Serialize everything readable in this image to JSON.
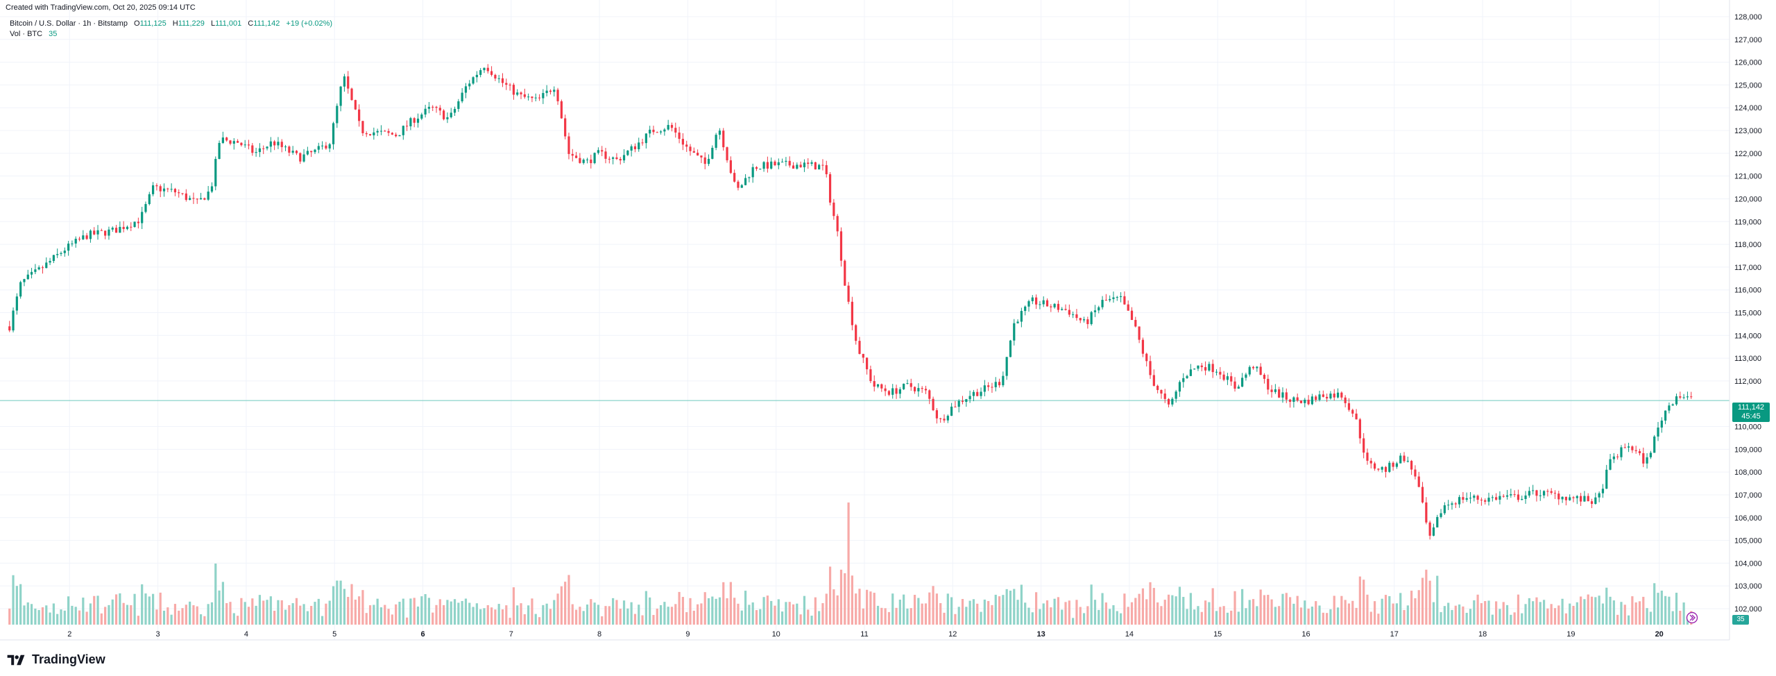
{
  "header": {
    "created": "Created with TradingView.com, Oct 20, 2025 09:14 UTC",
    "symbol": "Bitcoin / U.S. Dollar · 1h · Bitstamp",
    "o_label": "O",
    "o_value": "111,125",
    "h_label": "H",
    "h_value": "111,229",
    "l_label": "L",
    "l_value": "111,001",
    "c_label": "C",
    "c_value": "111,142",
    "change": "+19 (+0.02%)",
    "vol_label": "Vol · BTC",
    "vol_value": "35"
  },
  "price_tag": {
    "price": "111,142",
    "countdown": "45:45"
  },
  "volume_tag": "35",
  "brand": "TradingView",
  "colors": {
    "up": "#089981",
    "down": "#f23645",
    "vol_up": "#8fd3c8",
    "vol_down": "#f7a9a7",
    "grid": "#f0f3fa"
  },
  "chart_data": {
    "type": "candlestick",
    "title": "Bitcoin / U.S. Dollar · 1h · Bitstamp",
    "interval": "1h",
    "ylim": [
      101000,
      128500
    ],
    "y_ticks": [
      "128,000",
      "127,000",
      "126,000",
      "125,000",
      "124,000",
      "123,000",
      "122,000",
      "121,000",
      "120,000",
      "119,000",
      "118,000",
      "117,000",
      "116,000",
      "115,000",
      "114,000",
      "113,000",
      "112,000",
      "110,000",
      "109,000",
      "108,000",
      "107,000",
      "106,000",
      "105,000",
      "104,000",
      "103,000",
      "102,000"
    ],
    "x_ticks": [
      {
        "label": "2",
        "bold": false
      },
      {
        "label": "3",
        "bold": false
      },
      {
        "label": "4",
        "bold": false
      },
      {
        "label": "5",
        "bold": false
      },
      {
        "label": "6",
        "bold": true
      },
      {
        "label": "7",
        "bold": false
      },
      {
        "label": "8",
        "bold": false
      },
      {
        "label": "9",
        "bold": false
      },
      {
        "label": "10",
        "bold": false
      },
      {
        "label": "11",
        "bold": false
      },
      {
        "label": "12",
        "bold": false
      },
      {
        "label": "13",
        "bold": true
      },
      {
        "label": "14",
        "bold": false
      },
      {
        "label": "15",
        "bold": false
      },
      {
        "label": "16",
        "bold": false
      },
      {
        "label": "17",
        "bold": false
      },
      {
        "label": "18",
        "bold": false
      },
      {
        "label": "19",
        "bold": false
      },
      {
        "label": "20",
        "bold": true
      }
    ],
    "x_range_days": [
      1.3,
      20.5
    ],
    "last_price": 111142,
    "close_path": [
      [
        1.32,
        114400
      ],
      [
        1.45,
        116300
      ],
      [
        1.7,
        117000
      ],
      [
        1.95,
        117800
      ],
      [
        2.2,
        118400
      ],
      [
        2.5,
        118600
      ],
      [
        2.8,
        119100
      ],
      [
        2.95,
        120500
      ],
      [
        3.2,
        120300
      ],
      [
        3.45,
        119800
      ],
      [
        3.6,
        120400
      ],
      [
        3.7,
        122600
      ],
      [
        3.9,
        122500
      ],
      [
        4.1,
        122000
      ],
      [
        4.3,
        122500
      ],
      [
        4.6,
        121800
      ],
      [
        4.8,
        122100
      ],
      [
        4.95,
        122500
      ],
      [
        5.1,
        125400
      ],
      [
        5.3,
        123000
      ],
      [
        5.5,
        122900
      ],
      [
        5.7,
        122800
      ],
      [
        5.9,
        123500
      ],
      [
        6.1,
        124000
      ],
      [
        6.3,
        123500
      ],
      [
        6.5,
        125000
      ],
      [
        6.7,
        125900
      ],
      [
        6.9,
        125100
      ],
      [
        7.1,
        124500
      ],
      [
        7.3,
        124300
      ],
      [
        7.5,
        125000
      ],
      [
        7.65,
        122000
      ],
      [
        7.85,
        121600
      ],
      [
        8.0,
        122000
      ],
      [
        8.2,
        121700
      ],
      [
        8.4,
        122300
      ],
      [
        8.6,
        123000
      ],
      [
        8.8,
        123200
      ],
      [
        9.0,
        122200
      ],
      [
        9.2,
        121500
      ],
      [
        9.35,
        123200
      ],
      [
        9.55,
        120300
      ],
      [
        9.75,
        121400
      ],
      [
        10.0,
        121500
      ],
      [
        10.3,
        121500
      ],
      [
        10.55,
        121400
      ],
      [
        10.6,
        120200
      ],
      [
        10.7,
        118400
      ],
      [
        10.8,
        115800
      ],
      [
        10.92,
        113500
      ],
      [
        11.1,
        111800
      ],
      [
        11.3,
        111500
      ],
      [
        11.5,
        111800
      ],
      [
        11.7,
        111500
      ],
      [
        11.85,
        110200
      ],
      [
        12.0,
        110900
      ],
      [
        12.2,
        111400
      ],
      [
        12.4,
        111700
      ],
      [
        12.55,
        112000
      ],
      [
        12.7,
        114600
      ],
      [
        12.9,
        115500
      ],
      [
        13.1,
        115300
      ],
      [
        13.3,
        115100
      ],
      [
        13.5,
        114500
      ],
      [
        13.7,
        115500
      ],
      [
        13.9,
        115600
      ],
      [
        14.05,
        114500
      ],
      [
        14.25,
        112100
      ],
      [
        14.45,
        110800
      ],
      [
        14.6,
        112200
      ],
      [
        14.8,
        112700
      ],
      [
        15.0,
        112500
      ],
      [
        15.2,
        111700
      ],
      [
        15.4,
        112700
      ],
      [
        15.6,
        111600
      ],
      [
        15.8,
        111200
      ],
      [
        16.0,
        111100
      ],
      [
        16.2,
        111400
      ],
      [
        16.4,
        111400
      ],
      [
        16.55,
        110500
      ],
      [
        16.7,
        108300
      ],
      [
        16.9,
        108100
      ],
      [
        17.1,
        108700
      ],
      [
        17.25,
        107800
      ],
      [
        17.4,
        105000
      ],
      [
        17.55,
        106500
      ],
      [
        17.8,
        106900
      ],
      [
        18.0,
        106800
      ],
      [
        18.2,
        106900
      ],
      [
        18.4,
        106900
      ],
      [
        18.6,
        107100
      ],
      [
        18.8,
        107000
      ],
      [
        19.1,
        106800
      ],
      [
        19.3,
        106700
      ],
      [
        19.45,
        108500
      ],
      [
        19.65,
        109200
      ],
      [
        19.85,
        108400
      ],
      [
        20.05,
        110600
      ],
      [
        20.2,
        111400
      ],
      [
        20.4,
        111142
      ]
    ],
    "volume_spikes": [
      [
        10.82,
        20
      ],
      [
        10.75,
        9
      ],
      [
        17.35,
        9
      ],
      [
        17.5,
        8
      ],
      [
        3.75,
        7
      ]
    ],
    "volume_max_btc": 40
  }
}
